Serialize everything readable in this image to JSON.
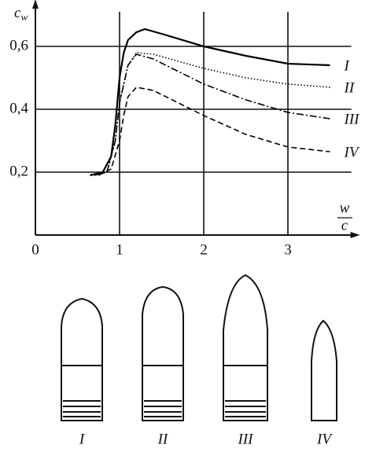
{
  "chart_data": {
    "type": "line",
    "ylabel": {
      "main": "c",
      "sub": "w"
    },
    "xlabel": {
      "numerator": "w",
      "denominator": "c"
    },
    "xlim": [
      0,
      3.8
    ],
    "ylim": [
      0,
      0.72
    ],
    "xticks": [
      0,
      1,
      2,
      3
    ],
    "yticks": [
      {
        "value": 0.2,
        "label": "0,2"
      },
      {
        "value": 0.4,
        "label": "0,4"
      },
      {
        "value": 0.6,
        "label": "0,6"
      }
    ],
    "grid": true,
    "series": [
      {
        "name": "I",
        "color": "#000000",
        "dash": "solid",
        "x": [
          0.65,
          0.8,
          0.9,
          0.95,
          1.0,
          1.05,
          1.1,
          1.2,
          1.3,
          1.5,
          2.0,
          2.5,
          3.0,
          3.5
        ],
        "values": [
          0.19,
          0.2,
          0.25,
          0.35,
          0.5,
          0.58,
          0.62,
          0.645,
          0.655,
          0.64,
          0.6,
          0.57,
          0.545,
          0.54
        ]
      },
      {
        "name": "II",
        "color": "#000000",
        "dash": "dotted",
        "x": [
          0.7,
          0.85,
          0.95,
          1.0,
          1.1,
          1.2,
          1.4,
          2.0,
          2.5,
          3.0,
          3.5
        ],
        "values": [
          0.19,
          0.2,
          0.3,
          0.42,
          0.54,
          0.58,
          0.575,
          0.53,
          0.5,
          0.48,
          0.47
        ]
      },
      {
        "name": "III",
        "color": "#000000",
        "dash": "dashdot",
        "x": [
          0.7,
          0.85,
          0.95,
          1.0,
          1.1,
          1.2,
          1.4,
          2.0,
          2.5,
          3.0,
          3.5
        ],
        "values": [
          0.19,
          0.2,
          0.3,
          0.42,
          0.54,
          0.575,
          0.56,
          0.48,
          0.43,
          0.39,
          0.37
        ]
      },
      {
        "name": "IV",
        "color": "#000000",
        "dash": "dashed",
        "x": [
          0.75,
          0.9,
          1.0,
          1.05,
          1.1,
          1.2,
          1.4,
          2.0,
          2.5,
          3.0,
          3.5
        ],
        "values": [
          0.19,
          0.21,
          0.3,
          0.38,
          0.44,
          0.47,
          0.46,
          0.38,
          0.32,
          0.28,
          0.265
        ]
      }
    ]
  }
}
